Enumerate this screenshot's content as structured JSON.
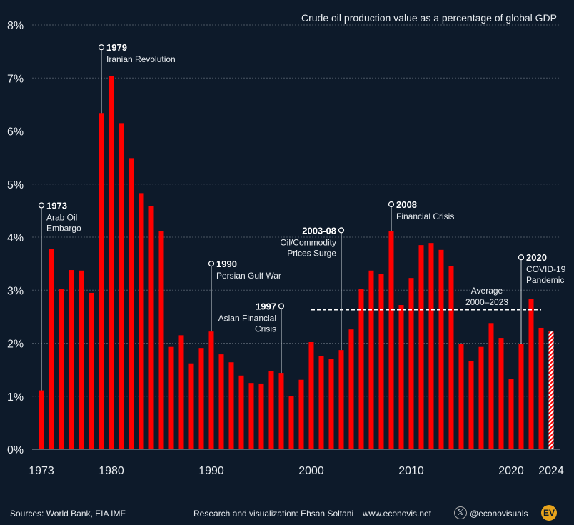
{
  "chart_data": {
    "type": "bar",
    "title": "Crude oil production value as a percentage of global GDP",
    "xlabel": "",
    "ylabel": "",
    "ylim": [
      0,
      8
    ],
    "yticks": [
      0,
      1,
      2,
      3,
      4,
      5,
      6,
      7,
      8
    ],
    "ytick_labels": [
      "0%",
      "1%",
      "2%",
      "3%",
      "4%",
      "5%",
      "6%",
      "7%",
      "8%"
    ],
    "xticks": [
      1973,
      1980,
      1990,
      2000,
      2010,
      2020,
      2024
    ],
    "xtick_labels": [
      "1973",
      "1980",
      "1990",
      "2000",
      "2010",
      "2020",
      "2024"
    ],
    "grid": true,
    "bar_color": "#ff0000",
    "categories": [
      1973,
      1974,
      1975,
      1976,
      1977,
      1978,
      1979,
      1980,
      1981,
      1982,
      1983,
      1984,
      1985,
      1986,
      1987,
      1988,
      1989,
      1990,
      1991,
      1992,
      1993,
      1994,
      1995,
      1996,
      1997,
      1998,
      1999,
      2000,
      2001,
      2002,
      2003,
      2004,
      2005,
      2006,
      2007,
      2008,
      2009,
      2010,
      2011,
      2012,
      2013,
      2014,
      2015,
      2016,
      2017,
      2018,
      2019,
      2020,
      2021,
      2022,
      2023,
      2024
    ],
    "values": [
      1.11,
      3.78,
      3.03,
      3.38,
      3.37,
      2.95,
      6.34,
      7.04,
      6.15,
      5.49,
      4.83,
      4.58,
      4.12,
      1.93,
      2.15,
      1.62,
      1.91,
      2.22,
      1.79,
      1.64,
      1.39,
      1.25,
      1.24,
      1.47,
      1.44,
      1.01,
      1.31,
      2.02,
      1.76,
      1.71,
      1.87,
      2.26,
      3.03,
      3.37,
      3.31,
      4.12,
      2.72,
      3.23,
      3.85,
      3.89,
      3.76,
      3.46,
      1.99,
      1.66,
      1.93,
      2.38,
      2.1,
      1.33,
      1.99,
      2.83,
      2.29,
      2.22
    ],
    "estimated_years": [
      2024
    ],
    "average": {
      "value": 2.63,
      "from": 2000,
      "to": 2023,
      "label1": "Average",
      "label2": "2000–2023"
    },
    "annotations": [
      {
        "year": 1973,
        "at": 4.6,
        "title": "1973",
        "lines": [
          "Arab Oil",
          "Embargo"
        ],
        "side": "right"
      },
      {
        "year": 1979,
        "at": 7.58,
        "title": "1979",
        "lines": [
          "Iranian Revolution"
        ],
        "side": "right"
      },
      {
        "year": 1990,
        "at": 3.5,
        "title": "1990",
        "lines": [
          "Persian Gulf War"
        ],
        "side": "right"
      },
      {
        "year": 1997,
        "at": 2.7,
        "title": "1997",
        "lines": [
          "Asian Financial",
          "Crisis"
        ],
        "side": "left"
      },
      {
        "year": 2003,
        "at": 4.13,
        "title": "2003-08",
        "lines": [
          "Oil/Commodity",
          "Prices Surge"
        ],
        "side": "left"
      },
      {
        "year": 2008,
        "at": 4.62,
        "title": "2008",
        "lines": [
          "Financial Crisis"
        ],
        "side": "right"
      },
      {
        "year": 2021,
        "at": 3.62,
        "title": "2020",
        "lines": [
          "COVID-19",
          "Pandemic"
        ],
        "side": "right"
      }
    ]
  },
  "footer": {
    "sources": "Sources: World Bank, EIA IMF",
    "credit": "Research and visualization: Ehsan Soltani",
    "website": "www.econovis.net",
    "social": "@econovisuals",
    "logo": "EV"
  }
}
